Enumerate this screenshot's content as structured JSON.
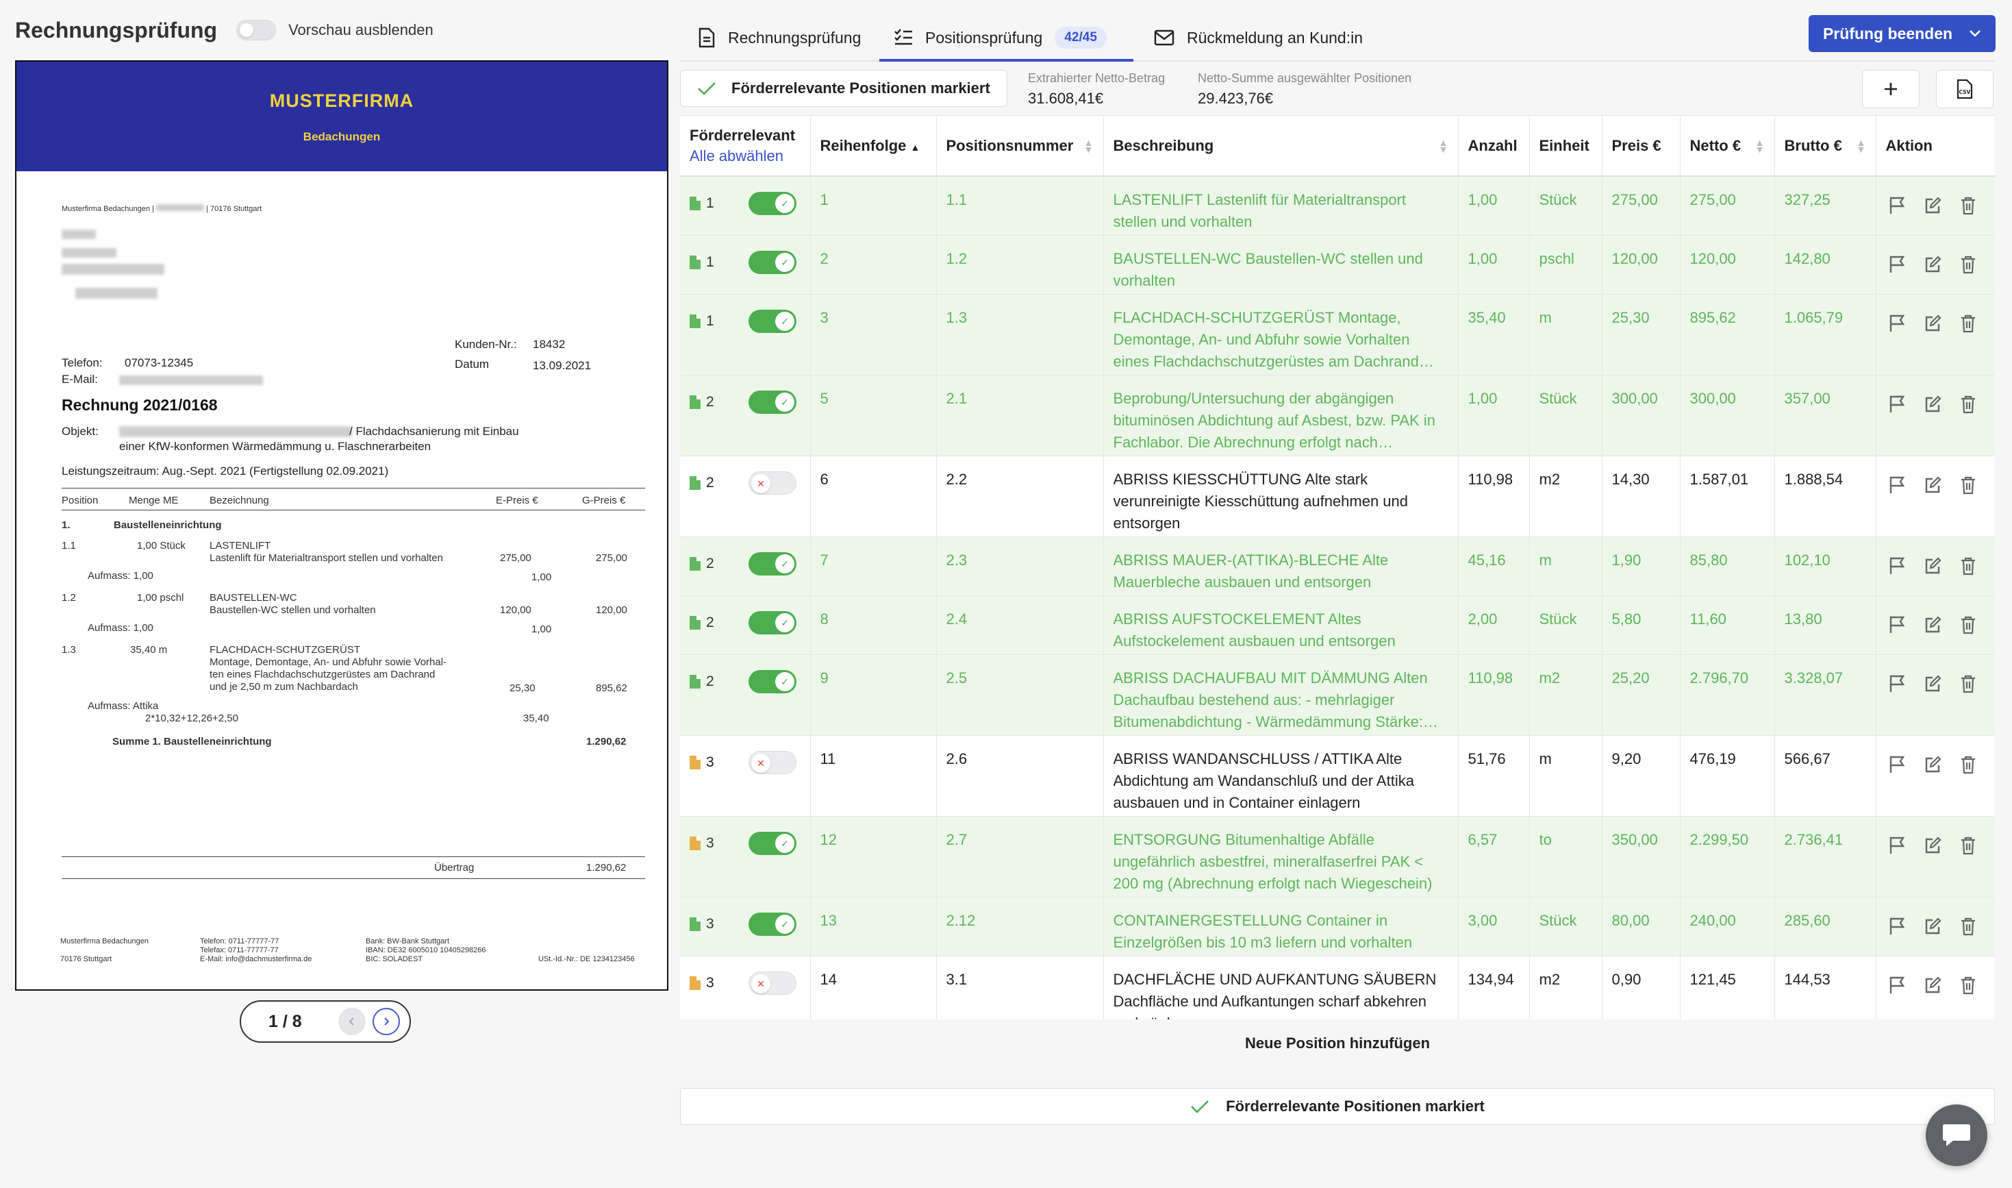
{
  "left": {
    "title": "Rechnungsprüfung",
    "toggle_label": "Vorschau ausblenden",
    "pager": "1 / 8"
  },
  "doc": {
    "brand": "MUSTERFIRMA",
    "brand_sub": "Bedachungen",
    "sender": "Musterfirma Bedachungen |",
    "sender_city": "| 70176 Stuttgart",
    "kunden_label": "Kunden-Nr.:",
    "kunden_value": "18432",
    "datum_label": "Datum",
    "datum_value": "13.09.2021",
    "telefon_label": "Telefon:",
    "telefon_value": "07073-12345",
    "email_label": "E-Mail:",
    "rechnung": "Rechnung 2021/0168",
    "objekt_label": "Objekt:",
    "objekt_value": "/ Flachdachsanierung mit Einbau",
    "objekt_value2": "einer KfW-konformen Wärmedämmung u. Flaschnerarbeiten",
    "leistung": "Leistungszeitraum:  Aug.-Sept. 2021 (Fertigstellung 02.09.2021)",
    "col_position": "Position",
    "col_menge": "Menge ME",
    "col_bezeichnung": "Bezeichnung",
    "col_epreis": "E-Preis €",
    "col_gpreis": "G-Preis €",
    "sec1_num": "1.",
    "sec1_title": "Baustelleneinrichtung",
    "i1_pos": "1.1",
    "i1_menge": "1,00  Stück",
    "i1_title": "LASTENLIFT",
    "i1_desc": "Lastenlift für Materialtransport stellen und vorhalten",
    "i1_ep": "275,00",
    "i1_gp": "275,00",
    "i1_aufmass": "Aufmass:   1,00",
    "i1_aufmass_val": "1,00",
    "i2_pos": "1.2",
    "i2_menge": "1,00  pschl",
    "i2_title": "BAUSTELLEN-WC",
    "i2_desc": "Baustellen-WC stellen und vorhalten",
    "i2_ep": "120,00",
    "i2_gp": "120,00",
    "i2_aufmass": "Aufmass:   1,00",
    "i2_aufmass_val": "1,00",
    "i3_pos": "1.3",
    "i3_menge": "35,40  m",
    "i3_title": "FLACHDACH-SCHUTZGERÜST",
    "i3_desc1": "Montage, Demontage, An- und Abfuhr sowie Vorhal-",
    "i3_desc2": "ten eines Flachdachschutzgerüstes am Dachrand",
    "i3_desc3": "und je 2,50 m zum Nachbardach",
    "i3_ep": "25,30",
    "i3_gp": "895,62",
    "i3_aufmass": "Aufmass:   Attika",
    "i3_aufmass2": "2*10,32+12,26+2,50",
    "i3_aufmass_val": "35,40",
    "summe_label": "Summe 1. Baustelleneinrichtung",
    "summe_value": "1.290,62",
    "uebertrag_label": "Übertrag",
    "uebertrag_value": "1.290,62",
    "f1": "Musterfirma Bedachungen",
    "f2": "70176 Stuttgart",
    "f3": "Telefon:  0711-77777-77",
    "f4": "Telefax:  0711-77777-77",
    "f5": "E-Mail:  info@dachmusterfirma.de",
    "f6": "Bank:  BW-Bank Stuttgart",
    "f7": "IBAN:  DE32 6005010 10405298266",
    "f8": "BIC:   SOLADEST",
    "f9": "USt.-Id.-Nr.: DE 1234123456"
  },
  "tabs": [
    {
      "label": "Rechnungsprüfung",
      "icon": "document-icon"
    },
    {
      "label": "Positionsprüfung",
      "icon": "checklist-icon",
      "badge": "42/45"
    },
    {
      "label": "Rückmeldung an Kund:in",
      "icon": "mail-icon"
    }
  ],
  "end_button": "Prüfung beenden",
  "toolbar": {
    "marked_label": "Förderrelevante Positionen markiert",
    "netto_extracted_label": "Extrahierter Netto-Betrag",
    "netto_extracted_value": "31.608,41€",
    "netto_selected_label": "Netto-Summe ausgewählter Positionen",
    "netto_selected_value": "29.423,76€",
    "add_icon": "plus-icon",
    "csv_icon": "csv-icon"
  },
  "table": {
    "headers": {
      "foerder": "Förderrelevant",
      "select_all": "Alle abwählen",
      "reihenfolge": "Reihenfolge",
      "positionsnummer": "Positionsnummer",
      "beschreibung": "Beschreibung",
      "anzahl": "Anzahl",
      "einheit": "Einheit",
      "preis": "Preis €",
      "netto": "Netto €",
      "brutto": "Brutto €",
      "aktion": "Aktion"
    },
    "rows": [
      {
        "group": "1",
        "icon": "g",
        "on": true,
        "order": "1",
        "pos": "1.1",
        "desc": "LASTENLIFT Lastenlift für Materialtransport stellen und vorhalten",
        "qty": "1,00",
        "unit": "Stück",
        "price": "275,00",
        "net": "275,00",
        "gross": "327,25"
      },
      {
        "group": "1",
        "icon": "g",
        "on": true,
        "order": "2",
        "pos": "1.2",
        "desc": "BAUSTELLEN-WC Baustellen-WC stellen und vorhalten",
        "qty": "1,00",
        "unit": "pschl",
        "price": "120,00",
        "net": "120,00",
        "gross": "142,80"
      },
      {
        "group": "1",
        "icon": "g",
        "on": true,
        "order": "3",
        "pos": "1.3",
        "desc": "FLACHDACH-SCHUTZGERÜST Montage, Demontage, An- und Abfuhr sowie Vorhalten eines Flachdachschutzgerüstes am Dachrand…",
        "qty": "35,40",
        "unit": "m",
        "price": "25,30",
        "net": "895,62",
        "gross": "1.065,79"
      },
      {
        "group": "2",
        "icon": "g",
        "on": true,
        "order": "5",
        "pos": "2.1",
        "desc": "Beprobung/Untersuchung der abgängigen bituminösen Abdichtung auf Asbest, bzw. PAK in Fachlabor. Die Abrechnung erfolgt nach…",
        "qty": "1,00",
        "unit": "Stück",
        "price": "300,00",
        "net": "300,00",
        "gross": "357,00"
      },
      {
        "group": "2",
        "icon": "g",
        "on": false,
        "order": "6",
        "pos": "2.2",
        "desc": "ABRISS KIESSCHÜTTUNG Alte stark verunreinigte Kiesschüttung aufnehmen und entsorgen",
        "qty": "110,98",
        "unit": "m2",
        "price": "14,30",
        "net": "1.587,01",
        "gross": "1.888,54"
      },
      {
        "group": "2",
        "icon": "g",
        "on": true,
        "order": "7",
        "pos": "2.3",
        "desc": "ABRISS MAUER-(ATTIKA)-BLECHE Alte Mauerbleche ausbauen und entsorgen",
        "qty": "45,16",
        "unit": "m",
        "price": "1,90",
        "net": "85,80",
        "gross": "102,10"
      },
      {
        "group": "2",
        "icon": "g",
        "on": true,
        "order": "8",
        "pos": "2.4",
        "desc": "ABRISS AUFSTOCKELEMENT Altes Aufstockelement ausbauen und entsorgen",
        "qty": "2,00",
        "unit": "Stück",
        "price": "5,80",
        "net": "11,60",
        "gross": "13,80"
      },
      {
        "group": "2",
        "icon": "g",
        "on": true,
        "order": "9",
        "pos": "2.5",
        "desc": "ABRISS DACHAUFBAU MIT DÄMMUNG Alten Dachaufbau bestehend aus: - mehrlagiger Bitumenabdichtung - Wärmedämmung Stärke:…",
        "qty": "110,98",
        "unit": "m2",
        "price": "25,20",
        "net": "2.796,70",
        "gross": "3.328,07"
      },
      {
        "group": "3",
        "icon": "o",
        "on": false,
        "order": "11",
        "pos": "2.6",
        "desc": "ABRISS WANDANSCHLUSS / ATTIKA Alte Abdichtung am Wandanschluß und der Attika ausbauen und in Container einlagern",
        "qty": "51,76",
        "unit": "m",
        "price": "9,20",
        "net": "476,19",
        "gross": "566,67"
      },
      {
        "group": "3",
        "icon": "o",
        "on": true,
        "order": "12",
        "pos": "2.7",
        "desc": "ENTSORGUNG Bitumenhaltige Abfälle ungefährlich asbestfrei, mineralfaserfrei PAK < 200 mg (Abrechnung erfolgt nach Wiegeschein)",
        "qty": "6,57",
        "unit": "to",
        "price": "350,00",
        "net": "2.299,50",
        "gross": "2.736,41"
      },
      {
        "group": "3",
        "icon": "g",
        "on": true,
        "order": "13",
        "pos": "2.12",
        "desc": "CONTAINERGESTELLUNG Container in Einzelgrößen bis 10 m3 liefern und vorhalten",
        "qty": "3,00",
        "unit": "Stück",
        "price": "80,00",
        "net": "240,00",
        "gross": "285,60"
      },
      {
        "group": "3",
        "icon": "o",
        "on": false,
        "order": "14",
        "pos": "3.1",
        "desc": "DACHFLÄCHE UND AUFKANTUNG SÄUBERN Dachfläche und Aufkantungen scharf abkehren und säubern",
        "qty": "134,94",
        "unit": "m2",
        "price": "0,90",
        "net": "121,45",
        "gross": "144,53"
      }
    ]
  },
  "add_position": "Neue Position hinzufügen",
  "bottom_marked": "Förderrelevante Positionen markiert",
  "colors": {
    "accent": "#3350c4",
    "green": "#4cae4f",
    "row_green": "#ecf7e9",
    "banner": "#2a2f9e",
    "brand": "#f2d13b"
  }
}
